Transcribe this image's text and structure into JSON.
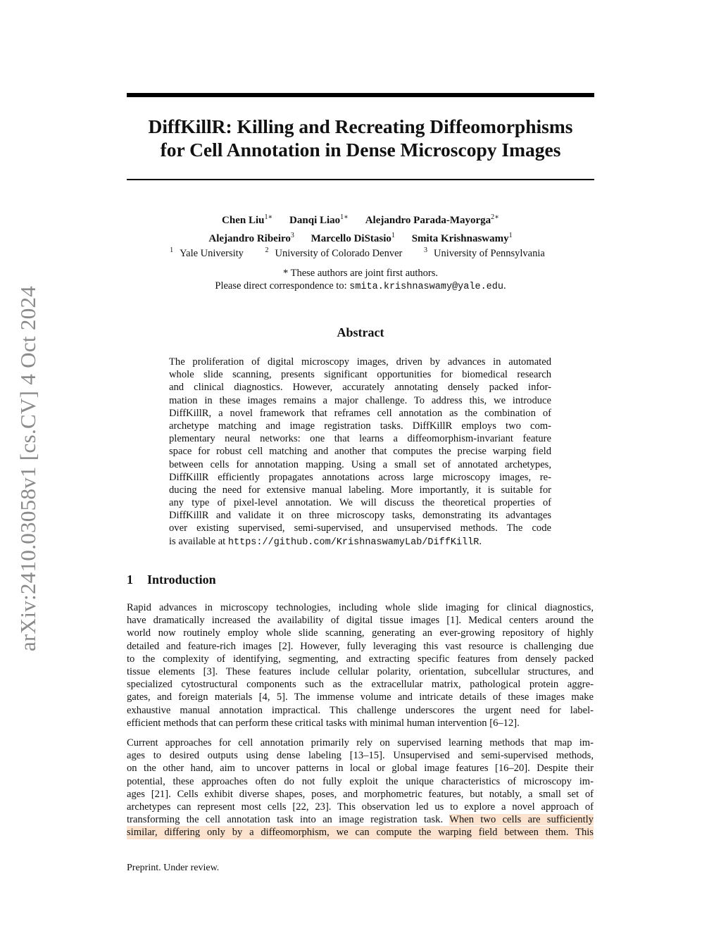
{
  "arxiv_stamp": "arXiv:2410.03058v1  [cs.CV]  4 Oct 2024",
  "title_lines": [
    "DiffKillR: Killing and Recreating Diffeomorphisms",
    "for Cell Annotation in Dense Microscopy Images"
  ],
  "authors_row1": [
    {
      "name": "Chen Liu",
      "sup": "1∗"
    },
    {
      "name": "Danqi Liao",
      "sup": "1∗"
    },
    {
      "name": "Alejandro Parada-Mayorga",
      "sup": "2∗"
    }
  ],
  "authors_row2": [
    {
      "name": "Alejandro Ribeiro",
      "sup": "3"
    },
    {
      "name": "Marcello DiStasio",
      "sup": "1"
    },
    {
      "name": "Smita Krishnaswamy",
      "sup": "1"
    }
  ],
  "affiliations": [
    {
      "sup": "1",
      "name": "Yale University"
    },
    {
      "sup": "2",
      "name": "University of Colorado Denver"
    },
    {
      "sup": "3",
      "name": "University of Pennsylvania"
    }
  ],
  "joint_note": "* These authors are joint first authors.",
  "correspondence_prefix": "Please direct correspondence to: ",
  "correspondence_email": "smita.krishnaswamy@yale.edu",
  "correspondence_suffix": ".",
  "abstract_heading": "Abstract",
  "abstract_lines": [
    "The proliferation of digital microscopy images, driven by advances in automated",
    "whole slide scanning, presents significant opportunities for biomedical research",
    "and clinical diagnostics.  However, accurately annotating densely packed infor-",
    "mation in these images remains a major challenge. To address this, we introduce",
    "DiffKillR, a novel framework that reframes cell annotation as the combination of",
    "archetype matching and image registration tasks.  DiffKillR employs two com-",
    "plementary neural networks: one that learns a diffeomorphism-invariant feature",
    "space for robust cell matching and another that computes the precise warping field",
    "between cells for annotation mapping. Using a small set of annotated archetypes,",
    "DiffKillR efficiently propagates annotations across large microscopy images, re-",
    "ducing the need for extensive manual labeling. More importantly, it is suitable for",
    "any type of pixel-level annotation.  We will discuss the theoretical properties of",
    "DiffKillR and validate it on three microscopy tasks, demonstrating its advantages",
    "over existing supervised, semi-supervised, and unsupervised methods.  The code"
  ],
  "abstract_last_prefix": "is available at ",
  "abstract_last_url": "https://github.com/KrishnaswamyLab/DiffKillR",
  "abstract_last_suffix": ".",
  "section": {
    "number": "1",
    "title": "Introduction"
  },
  "intro_p1_lines": [
    "Rapid advances in microscopy technologies, including whole slide imaging for clinical diagnostics,",
    "have dramatically increased the availability of digital tissue images [1]. Medical centers around the",
    "world now routinely employ whole slide scanning, generating an ever-growing repository of highly",
    "detailed and feature-rich images [2]. However, fully leveraging this vast resource is challenging due",
    "to the complexity of identifying, segmenting, and extracting specific features from densely packed",
    "tissue elements [3]. These features include cellular polarity, orientation, subcellular structures, and",
    "specialized cytostructural components such as the extracellular matrix, pathological protein aggre-",
    "gates, and foreign materials [4, 5]. The immense volume and intricate details of these images make",
    "exhaustive manual annotation impractical.  This challenge underscores the urgent need for label-",
    "efficient methods that can perform these critical tasks with minimal human intervention [6–12]."
  ],
  "intro_p2_lines": [
    "Current approaches for cell annotation primarily rely on supervised learning methods that map im-",
    "ages to desired outputs using dense labeling [13–15].  Unsupervised and semi-supervised methods,",
    "on the other hand, aim to uncover patterns in local or global image features [16–20]. Despite their",
    "potential, these approaches often do not fully exploit the unique characteristics of microscopy im-",
    "ages [21]. Cells exhibit diverse shapes, poses, and morphometric features, but notably, a small set of",
    "archetypes can represent most cells [22, 23]. This observation led us to explore a novel approach of"
  ],
  "intro_p2_line9_plain": "transforming the cell annotation task into an image registration task. ",
  "intro_p2_line9_highlight": "When two cells are sufficiently",
  "intro_p2_line10_highlight": "similar, differing only by a diffeomorphism, we can compute the warping field between them. This",
  "highlight_color": "#fbe3cf",
  "footer": "Preprint. Under review."
}
